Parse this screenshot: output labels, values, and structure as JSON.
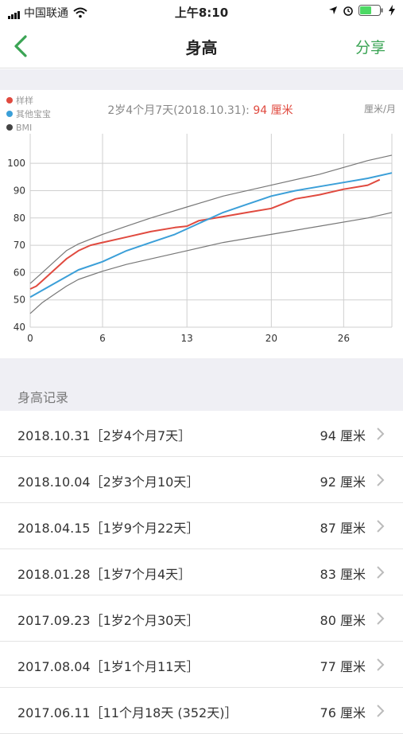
{
  "status_bar": {
    "carrier": "中国联通",
    "time": "上午8:10"
  },
  "nav": {
    "title": "身高",
    "share_label": "分享",
    "accent_color": "#3aa454"
  },
  "chart": {
    "legend": [
      {
        "label": "样样",
        "color": "#e04a3f"
      },
      {
        "label": "其他宝宝",
        "color": "#3b9fd8"
      },
      {
        "label": "BMI",
        "color": "#444444"
      }
    ],
    "summary_prefix": "2岁4个月7天(2018.10.31): ",
    "summary_value": "94 厘米",
    "unit_label": "厘米/月"
  },
  "chart_data": {
    "type": "line",
    "xlim": [
      0,
      30
    ],
    "ylim": [
      40,
      105
    ],
    "x_ticks": [
      0,
      6,
      13,
      20,
      26
    ],
    "y_ticks": [
      40,
      50,
      60,
      70,
      80,
      90,
      100
    ],
    "series": [
      {
        "name": "样样",
        "color": "#e04a3f",
        "x": [
          0,
          0.5,
          1,
          2,
          3,
          4,
          5,
          6,
          8,
          10,
          12,
          13,
          14,
          16,
          18,
          20,
          22,
          24,
          26,
          28,
          29
        ],
        "y": [
          54,
          55,
          57,
          61,
          65,
          68,
          70,
          71,
          73,
          75,
          76.5,
          77,
          79,
          80.5,
          82,
          83.5,
          87,
          88.5,
          90.5,
          92,
          94
        ]
      },
      {
        "name": "其他宝宝",
        "color": "#3b9fd8",
        "x": [
          0,
          2,
          4,
          6,
          8,
          10,
          12,
          13,
          14,
          16,
          18,
          20,
          22,
          24,
          26,
          28,
          30
        ],
        "y": [
          51,
          56,
          61,
          64,
          68,
          71,
          74,
          76,
          78,
          82,
          85,
          88,
          90,
          91.5,
          93,
          94.5,
          96.5
        ]
      },
      {
        "name": "上限",
        "color": "#777777",
        "x": [
          0,
          1,
          2,
          3,
          4,
          6,
          8,
          10,
          13,
          16,
          20,
          24,
          28,
          30
        ],
        "y": [
          56,
          60,
          64,
          68,
          70.5,
          74,
          77,
          80,
          84,
          88,
          92,
          96,
          101,
          103
        ]
      },
      {
        "name": "下限",
        "color": "#777777",
        "x": [
          0,
          1,
          2,
          3,
          4,
          6,
          8,
          10,
          13,
          16,
          20,
          24,
          28,
          30
        ],
        "y": [
          45,
          49,
          52,
          55,
          57.5,
          60.5,
          63,
          65,
          68,
          71,
          74,
          77,
          80,
          82
        ]
      }
    ]
  },
  "section": {
    "title": "身高记录"
  },
  "records": [
    {
      "date": "2018.10.31［2岁4个月7天］",
      "value": "94 厘米"
    },
    {
      "date": "2018.10.04［2岁3个月10天］",
      "value": "92 厘米"
    },
    {
      "date": "2018.04.15［1岁9个月22天］",
      "value": "87 厘米"
    },
    {
      "date": "2018.01.28［1岁7个月4天］",
      "value": "83 厘米"
    },
    {
      "date": "2017.09.23［1岁2个月30天］",
      "value": "80 厘米"
    },
    {
      "date": "2017.08.04［1岁1个月11天］",
      "value": "77 厘米"
    },
    {
      "date": "2017.06.11［11个月18天 (352天)］",
      "value": "76 厘米"
    }
  ]
}
